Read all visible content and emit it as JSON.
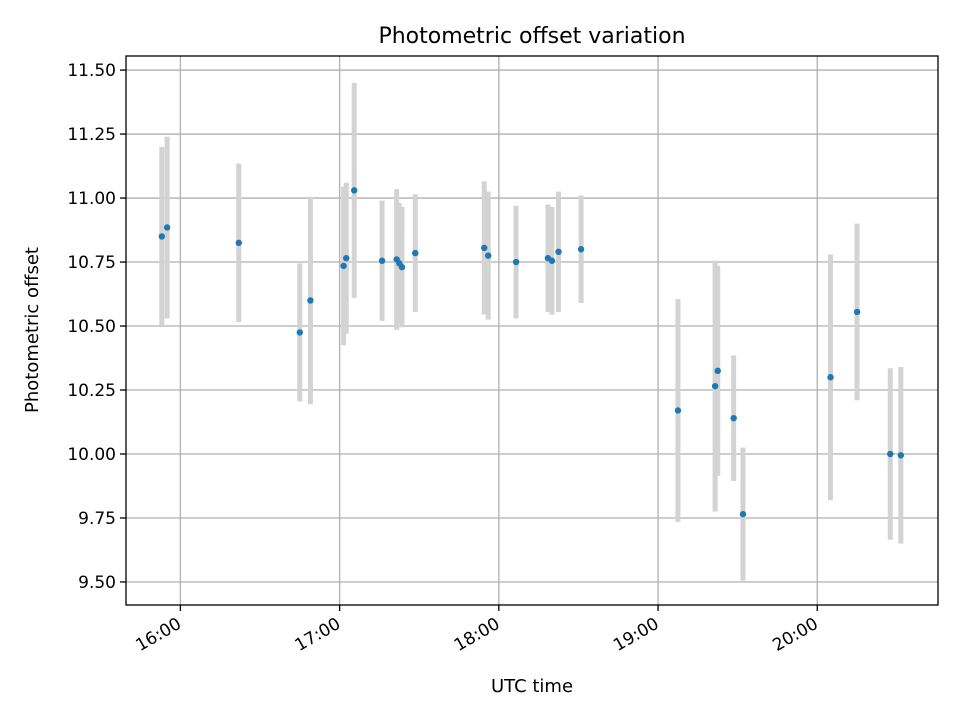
{
  "chart_data": {
    "type": "scatter",
    "title": "Photometric offset variation",
    "xlabel": "UTC time",
    "ylabel": "Photometric offset",
    "x_ticks": [
      "16:00",
      "17:00",
      "18:00",
      "19:00",
      "20:00"
    ],
    "y_ticks": [
      "9.50",
      "9.75",
      "10.00",
      "10.25",
      "10.50",
      "10.75",
      "11.00",
      "11.25",
      "11.50"
    ],
    "xlim": [
      "15:39:30",
      "20:45:30"
    ],
    "ylim": [
      9.41,
      11.555
    ],
    "grid": true,
    "legend": "none",
    "colors": {
      "point": "#1f77b4",
      "errorbar": "#d3d3d3",
      "grid": "#b0b0b0"
    },
    "points": [
      {
        "x": "15:53:00",
        "y": 10.85,
        "yerr": 0.35
      },
      {
        "x": "15:55:00",
        "y": 10.885,
        "yerr": 0.355
      },
      {
        "x": "16:22:00",
        "y": 10.825,
        "yerr": 0.31
      },
      {
        "x": "16:45:00",
        "y": 10.475,
        "yerr": 0.27
      },
      {
        "x": "16:49:00",
        "y": 10.6,
        "yerr": 0.405
      },
      {
        "x": "17:01:30",
        "y": 10.735,
        "yerr": 0.31
      },
      {
        "x": "17:02:30",
        "y": 10.765,
        "yerr": 0.295
      },
      {
        "x": "17:05:30",
        "y": 11.03,
        "yerr": 0.42
      },
      {
        "x": "17:16:00",
        "y": 10.755,
        "yerr": 0.235
      },
      {
        "x": "17:21:30",
        "y": 10.76,
        "yerr": 0.275
      },
      {
        "x": "17:22:30",
        "y": 10.745,
        "yerr": 0.235
      },
      {
        "x": "17:23:30",
        "y": 10.73,
        "yerr": 0.235
      },
      {
        "x": "17:28:30",
        "y": 10.785,
        "yerr": 0.23
      },
      {
        "x": "17:54:30",
        "y": 10.805,
        "yerr": 0.26
      },
      {
        "x": "17:56:00",
        "y": 10.775,
        "yerr": 0.25
      },
      {
        "x": "18:06:30",
        "y": 10.75,
        "yerr": 0.22
      },
      {
        "x": "18:18:30",
        "y": 10.765,
        "yerr": 0.21
      },
      {
        "x": "18:20:00",
        "y": 10.755,
        "yerr": 0.21
      },
      {
        "x": "18:22:30",
        "y": 10.79,
        "yerr": 0.235
      },
      {
        "x": "18:31:00",
        "y": 10.8,
        "yerr": 0.21
      },
      {
        "x": "19:07:30",
        "y": 10.17,
        "yerr": 0.435
      },
      {
        "x": "19:21:30",
        "y": 10.265,
        "yerr": 0.49
      },
      {
        "x": "19:22:30",
        "y": 10.325,
        "yerr": 0.41
      },
      {
        "x": "19:28:30",
        "y": 10.14,
        "yerr": 0.245
      },
      {
        "x": "19:32:00",
        "y": 9.765,
        "yerr": 0.26
      },
      {
        "x": "20:05:00",
        "y": 10.3,
        "yerr": 0.48
      },
      {
        "x": "20:15:00",
        "y": 10.555,
        "yerr": 0.345
      },
      {
        "x": "20:27:30",
        "y": 10.0,
        "yerr": 0.335
      },
      {
        "x": "20:31:30",
        "y": 9.995,
        "yerr": 0.345
      }
    ]
  }
}
